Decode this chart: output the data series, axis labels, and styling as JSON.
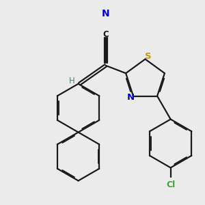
{
  "bg_color": "#ebebeb",
  "bond_color": "#1a1a1a",
  "S_color": "#b8a000",
  "N_color": "#0000dd",
  "Cl_color": "#40a040",
  "H_color": "#508080",
  "C_color": "#1a1a1a",
  "lw": 1.6,
  "doff": 0.018,
  "xlim": [
    0.0,
    3.0
  ],
  "ylim": [
    0.0,
    3.2
  ]
}
